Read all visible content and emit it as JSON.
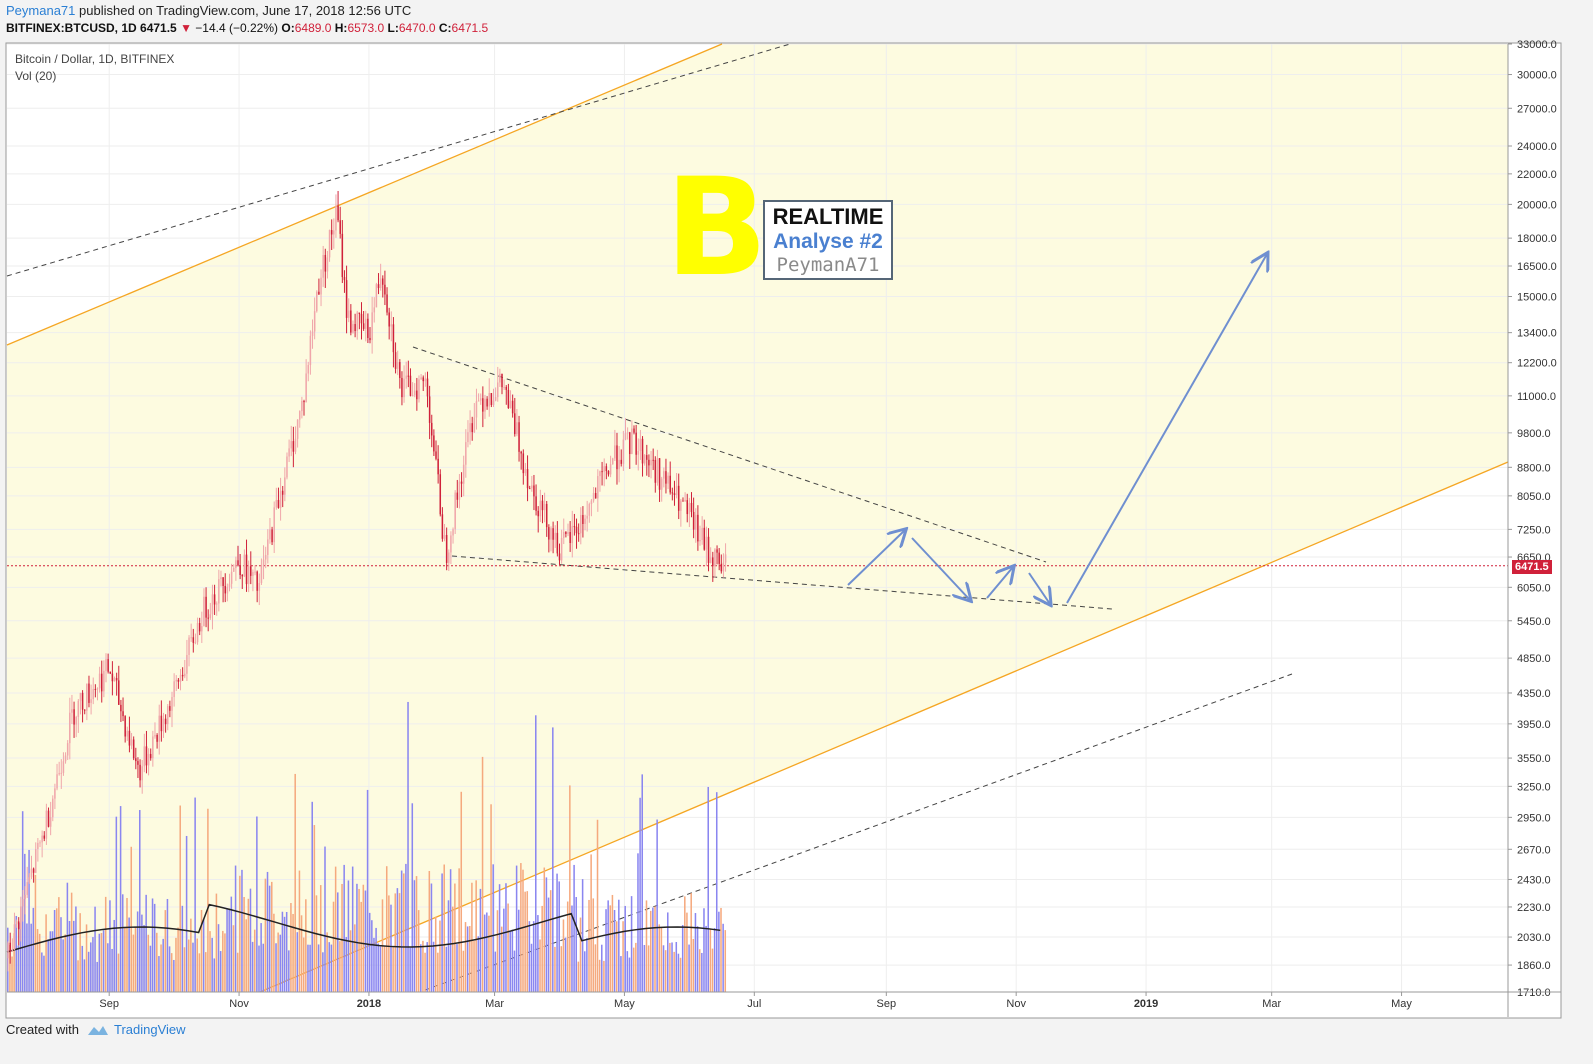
{
  "header": {
    "author": "Peymana71",
    "published": "published on TradingView.com, June 17, 2018 12:56 UTC",
    "symbol": "BITFINEX:BTCUSD, 1D",
    "last": "6471.5",
    "change": "−14.4 (−0.22%)",
    "o_label": "O:",
    "o_val": "6489.0",
    "h_label": "H:",
    "h_val": "6573.0",
    "l_label": "L:",
    "l_val": "6470.0",
    "c_label": "C:",
    "c_val": "6471.5"
  },
  "overlay": {
    "title": "Bitcoin / Dollar, 1D, BITFINEX",
    "vol": "Vol (20)"
  },
  "annotation": {
    "logo": "B",
    "line1": "REALTIME",
    "line2": "Analyse #2",
    "line3": "PeymanA71"
  },
  "current_price_tag": "6471.5",
  "footer": {
    "created": "Created with",
    "brand": "TradingView"
  },
  "colors": {
    "up": "#f0a6aa",
    "down": "#d0213a",
    "channel_fill": "#fdfbe0",
    "channel_line": "#f5a623",
    "arrow": "#6f8fd0",
    "vol_up": "#f5a97e",
    "vol_down": "#8a86f0"
  },
  "chart_data": {
    "type": "line",
    "title": "Bitcoin / Dollar, 1D, BITFINEX",
    "y_scale": "log",
    "ylim": [
      1710,
      33000
    ],
    "y_ticks": [
      "33000.0",
      "30000.0",
      "27000.0",
      "24000.0",
      "22000.0",
      "20000.0",
      "18000.0",
      "16500.0",
      "15000.0",
      "13400.0",
      "12200.0",
      "11000.0",
      "9800.0",
      "8800.0",
      "8050.0",
      "7250.0",
      "6650.0",
      "6050.0",
      "5450.0",
      "4850.0",
      "4350.0",
      "3950.0",
      "3550.0",
      "3250.0",
      "2950.0",
      "2670.0",
      "2430.0",
      "2230.0",
      "2030.0",
      "1860.0",
      "1710.0"
    ],
    "x_ticks": [
      "Sep",
      "Nov",
      "2018",
      "Mar",
      "May",
      "Jul",
      "Sep",
      "Nov",
      "2019",
      "Mar",
      "May"
    ],
    "series": [
      {
        "name": "BTCUSD",
        "x": [
          "2017-07-15",
          "2017-08-01",
          "2017-08-15",
          "2017-09-01",
          "2017-09-15",
          "2017-10-01",
          "2017-10-15",
          "2017-11-01",
          "2017-11-10",
          "2017-11-20",
          "2017-12-01",
          "2017-12-08",
          "2017-12-17",
          "2017-12-22",
          "2018-01-01",
          "2018-01-07",
          "2018-01-16",
          "2018-01-28",
          "2018-02-06",
          "2018-02-20",
          "2018-03-05",
          "2018-03-18",
          "2018-04-01",
          "2018-04-12",
          "2018-04-25",
          "2018-05-05",
          "2018-05-20",
          "2018-06-01",
          "2018-06-10",
          "2018-06-17"
        ],
        "values": [
          1900,
          2800,
          4100,
          4700,
          3400,
          4300,
          5600,
          6600,
          6000,
          8100,
          10800,
          15500,
          19500,
          14000,
          13400,
          16500,
          11200,
          11500,
          6700,
          10800,
          11400,
          8300,
          6800,
          7500,
          9000,
          9600,
          8400,
          7500,
          6700,
          6471.5
        ]
      }
    ],
    "annotations": {
      "channel": "rising channel",
      "triangle": "descending triangle",
      "projection": "arrow path to ~17000"
    },
    "current_price": 6471.5
  }
}
